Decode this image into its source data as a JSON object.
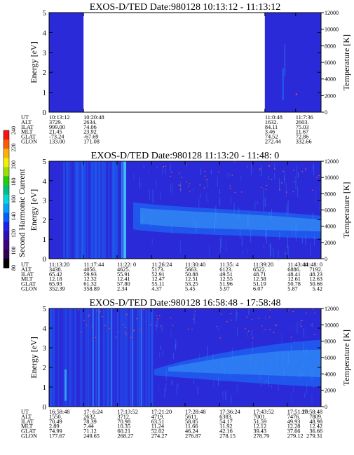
{
  "colors": {
    "background": "#2a2ad8",
    "mid": "#1e5ef0",
    "bright": "#3aa0f8",
    "cyan": "#3ed6ff",
    "gap": "#ffffff",
    "dots": "#e05050"
  },
  "colorbar": {
    "label": "Second Harmonic Current",
    "ticks": [
      "240",
      "220",
      "200",
      "180",
      "160",
      "140",
      "120",
      "100",
      "80"
    ],
    "colors": [
      "#ff1010",
      "#ff5a00",
      "#ffb000",
      "#f0f000",
      "#9ae000",
      "#20d000",
      "#00c080",
      "#00d8d8",
      "#00a0ff",
      "#0060ff",
      "#2020e8",
      "#3010b0",
      "#400080",
      "#300050",
      "#000000"
    ]
  },
  "chart_data": [
    {
      "type": "heatmap",
      "title": "EXOS-D/TED   Date:980128  10:13:12 - 11:13:12",
      "ylabel": "Energy [eV]",
      "ylim": [
        0,
        5
      ],
      "y_ticks": [
        "0",
        "1",
        "2",
        "3",
        "4",
        "5"
      ],
      "y2label": "Temperature [K]",
      "y2lim": [
        0,
        12000
      ],
      "y2_ticks": [
        "0",
        "2000",
        "4000",
        "6000",
        "8000",
        "10000",
        "12000"
      ],
      "data_gap": [
        "10:20:48",
        "11:0:48"
      ],
      "table": {
        "row_labels": [
          "UT",
          "ALT",
          "ILAT",
          "MLT",
          "GLAT",
          "GLON"
        ],
        "columns": [
          {
            "UT": "10:13:12",
            "ALT": "3729.",
            "ILAT": "999.00",
            "MLT": "21.45",
            "GLAT": "-73.24",
            "GLON": "133.00"
          },
          {
            "UT": "10:20:48",
            "ALT": "2634.",
            "ILAT": "74.06",
            "MLT": "23.92",
            "GLAT": "-67.69",
            "GLON": "171.08"
          },
          {
            "UT": "11:0:48",
            "ALT": "1632.",
            "ILAT": "84.11",
            "MLT": "3.46",
            "GLAT": "74.52",
            "GLON": "272.44"
          },
          {
            "UT": "11:7:36",
            "ALT": "2603.",
            "ILAT": "75.03",
            "MLT": "11.67",
            "GLAT": "72.86",
            "GLON": "332.66"
          }
        ]
      }
    },
    {
      "type": "heatmap",
      "title": "EXOS-D/TED   Date:980128  11:13:20 - 11:48: 0",
      "ylabel": "Energy [eV]",
      "ylim": [
        0,
        5
      ],
      "y_ticks": [
        "0",
        "1",
        "2",
        "3",
        "4",
        "5"
      ],
      "y2label": "Temperature [K]",
      "y2lim": [
        0,
        12000
      ],
      "y2_ticks": [
        "0",
        "2000",
        "4000",
        "6000",
        "8000",
        "10000",
        "12000"
      ],
      "table": {
        "row_labels": [
          "UT",
          "ALT",
          "ILAT",
          "MLT",
          "GLAT",
          "GLON"
        ],
        "columns": [
          {
            "UT": "11:13:20",
            "ALT": "3438.",
            "ILAT": "65.42",
            "MLT": "12.18",
            "GLAT": "65.93",
            "GLON": "352.39"
          },
          {
            "UT": "11:17:44",
            "ALT": "4056.",
            "ILAT": "59.93",
            "MLT": "12.32",
            "GLAT": "61.32",
            "GLON": "358.89"
          },
          {
            "UT": "11:22: 0",
            "ALT": "4625.",
            "ILAT": "55.91",
            "MLT": "12.41",
            "GLAT": "57.80",
            "GLON": "2.34"
          },
          {
            "UT": "11:26:24",
            "ALT": "5173.",
            "ILAT": "52.91",
            "MLT": "12.47",
            "GLAT": "55.11",
            "GLON": "4.37"
          },
          {
            "UT": "11:30:40",
            "ALT": "5663.",
            "ILAT": "50.88",
            "MLT": "12.51",
            "GLAT": "53.25",
            "GLON": "5.45"
          },
          {
            "UT": "11:35: 4",
            "ALT": "6123.",
            "ILAT": "49.51",
            "MLT": "12.55",
            "GLAT": "51.96",
            "GLON": "5.97"
          },
          {
            "UT": "11:39:20",
            "ALT": "6522.",
            "ILAT": "48.71",
            "MLT": "12.58",
            "GLAT": "51.19",
            "GLON": "6.07"
          },
          {
            "UT": "11:43:44",
            "ALT": "6886.",
            "ILAT": "48.41",
            "MLT": "12.61",
            "GLAT": "50.78",
            "GLON": "5.87"
          },
          {
            "UT": "11:48: 0",
            "ALT": "7192.",
            "ILAT": "48.23",
            "MLT": "12.63",
            "GLAT": "50.66",
            "GLON": "5.42"
          }
        ]
      }
    },
    {
      "type": "heatmap",
      "title": "EXOS-D/TED   Date:980128  16:58:48 - 17:58:48",
      "ylabel": "Energy [eV]",
      "ylim": [
        0,
        5
      ],
      "y_ticks": [
        "0",
        "1",
        "2",
        "3",
        "4",
        "5"
      ],
      "y2label": "Temperature [K]",
      "y2lim": [
        0,
        12000
      ],
      "y2_ticks": [
        "0",
        "2000",
        "4000",
        "6000",
        "8000",
        "10000",
        "12000"
      ],
      "table": {
        "row_labels": [
          "UT",
          "ALT",
          "ILAT",
          "MLT",
          "GLAT",
          "GLON"
        ],
        "columns": [
          {
            "UT": "16:58:48",
            "ALT": "1550.",
            "ILAT": "70.49",
            "MLT": "2.89",
            "GLAT": "74.99",
            "GLON": "177.67"
          },
          {
            "UT": "17: 6:24",
            "ALT": "2632.",
            "ILAT": "78.39",
            "MLT": "7.44",
            "GLAT": "71.12",
            "GLON": "249.65"
          },
          {
            "UT": "17:13:52",
            "ALT": "3712.",
            "ILAT": "70.98",
            "MLT": "10.35",
            "GLAT": "60.21",
            "GLON": "268.27"
          },
          {
            "UT": "17:21:20",
            "ALT": "4719.",
            "ILAT": "63.51",
            "MLT": "11.24",
            "GLAT": "52.02",
            "GLON": "274.27"
          },
          {
            "UT": "17:28:48",
            "ALT": "5611.",
            "ILAT": "58.05",
            "MLT": "11.66",
            "GLAT": "46.24",
            "GLON": "276.87"
          },
          {
            "UT": "17:36:24",
            "ALT": "6383.",
            "ILAT": "54.17",
            "MLT": "11.92",
            "GLAT": "42.16",
            "GLON": "278.15"
          },
          {
            "UT": "17:43:52",
            "ALT": "7001.",
            "ILAT": "51.59",
            "MLT": "12.12",
            "GLAT": "39.43",
            "GLON": "278.79"
          },
          {
            "UT": "17:51:20",
            "ALT": "7476.",
            "ILAT": "49.93",
            "MLT": "12.28",
            "GLAT": "37.66",
            "GLON": "279.12"
          },
          {
            "UT": "17:58:48",
            "ALT": "7809.",
            "ILAT": "48.98",
            "MLT": "12.42",
            "GLAT": "36.66",
            "GLON": "279.31"
          }
        ]
      }
    }
  ]
}
